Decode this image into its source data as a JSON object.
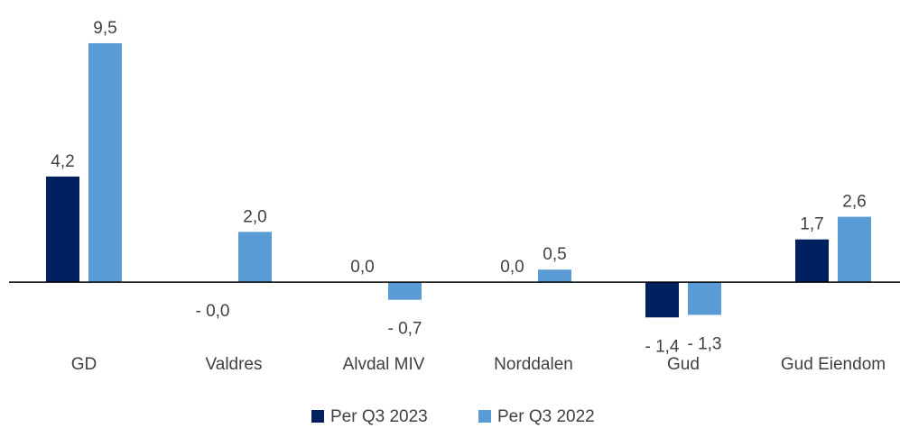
{
  "chart_data": {
    "type": "bar",
    "categories": [
      "GD",
      "Valdres",
      "Alvdal MIV",
      "Norddalen",
      "Gud",
      "Gud Eiendom"
    ],
    "series": [
      {
        "name": "Per Q3 2023",
        "color": "#002060",
        "values": [
          4.2,
          0,
          0,
          0,
          -1.4,
          1.7
        ],
        "value_labels": [
          "4,2",
          "- 0,0",
          "0,0",
          "0,0",
          "- 1,4",
          "1,7"
        ]
      },
      {
        "name": "Per Q3 2022",
        "color": "#5b9bd5",
        "values": [
          9.5,
          2.0,
          -0.7,
          0.5,
          -1.3,
          2.6
        ],
        "value_labels": [
          "9,5",
          "2,0",
          "- 0,7",
          "0,5",
          "- 1,3",
          "2,6"
        ]
      }
    ],
    "ylim": [
      -2,
      10
    ],
    "legend": "bottom"
  }
}
